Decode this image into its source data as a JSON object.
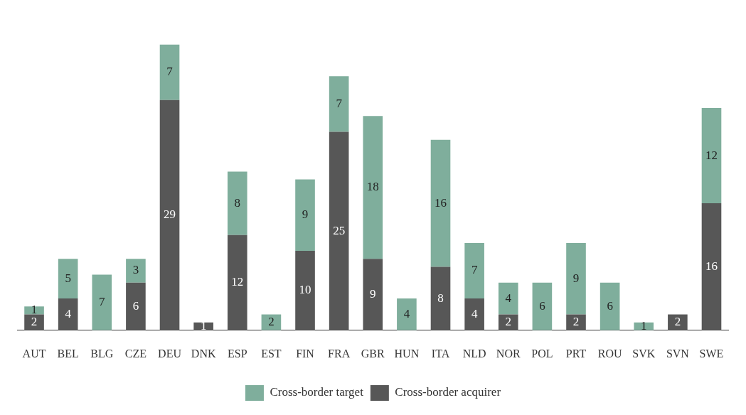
{
  "chart_data": {
    "type": "bar",
    "stacked": true,
    "data_labels": true,
    "legend": "bottom",
    "grid": false,
    "categories": [
      "AUT",
      "BEL",
      "BLG",
      "CZE",
      "DEU",
      "DNK",
      "ESP",
      "EST",
      "FIN",
      "FRA",
      "GBR",
      "HUN",
      "ITA",
      "NLD",
      "NOR",
      "POL",
      "PRT",
      "ROU",
      "SVK",
      "SVN",
      "SWE"
    ],
    "series": [
      {
        "name": "Cross-border acquirer",
        "color": "#575757",
        "values": [
          2,
          4,
          null,
          6,
          29,
          1,
          12,
          null,
          10,
          25,
          9,
          null,
          8,
          4,
          2,
          null,
          2,
          null,
          null,
          2,
          16
        ]
      },
      {
        "name": "Cross-border target",
        "color": "#7fae9c",
        "values": [
          1,
          5,
          7,
          3,
          7,
          null,
          8,
          2,
          9,
          7,
          18,
          4,
          16,
          7,
          4,
          6,
          9,
          6,
          1,
          null,
          12
        ]
      }
    ]
  }
}
